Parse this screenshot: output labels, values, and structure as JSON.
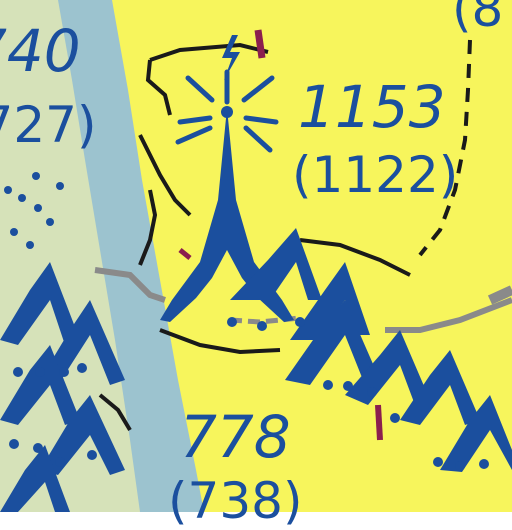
{
  "map": {
    "colors": {
      "land": "#f7f55c",
      "water": "#9cc3cf",
      "terrain_light": "#d6e2b9",
      "symbol_blue": "#1b4f9e",
      "road_gray": "#8a8a8a",
      "magenta": "#8b1e4e",
      "road_black": "#1a1a1a"
    },
    "obstacles": [
      {
        "id": "tower-main",
        "elevation_msl": "1153",
        "height_agl": "(1122)"
      },
      {
        "id": "obstacle-bottom",
        "elevation_msl": "778",
        "height_agl": "(738)"
      },
      {
        "id": "obstacle-top-left",
        "elevation_msl": "740",
        "height_agl": "(727)"
      },
      {
        "id": "obstacle-top-right",
        "elevation_msl": "",
        "height_agl": "(8"
      }
    ],
    "symbols": [
      "lighted-obstacle-icon",
      "obstruction-group-icon",
      "wind-turbine-field-icon"
    ]
  }
}
